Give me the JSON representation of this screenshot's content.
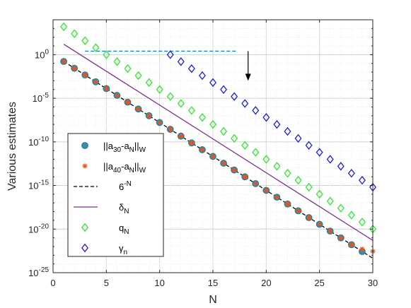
{
  "chart_data": {
    "type": "scatter",
    "xlabel": "N",
    "ylabel": "Various estimates",
    "xlim": [
      0,
      30
    ],
    "ylim_exponent": [
      -25,
      4
    ],
    "y_scale": "log",
    "grid": true,
    "legend_position": "bottom-left",
    "x_ticks": [
      "0",
      "5",
      "10",
      "15",
      "20",
      "25",
      "30"
    ],
    "y_ticks": [
      {
        "value": 0,
        "base": "10",
        "exp": "0"
      },
      {
        "value": -5,
        "base": "10",
        "exp": "-5"
      },
      {
        "value": -10,
        "base": "10",
        "exp": "-10"
      },
      {
        "value": -15,
        "base": "10",
        "exp": "-15"
      },
      {
        "value": -20,
        "base": "10",
        "exp": "-20"
      },
      {
        "value": -25,
        "base": "10",
        "exp": "-25"
      }
    ],
    "series": [
      {
        "label_main": "||a",
        "label_sub1": "30",
        "label_mid": "-a",
        "label_sub2": "N",
        "label_tail": "||",
        "label_sub3": "W",
        "marker": "circle",
        "color": "#2a7a8c",
        "fill": "#3a8fb0",
        "x": [
          1,
          2,
          3,
          4,
          5,
          6,
          7,
          8,
          9,
          10,
          11,
          12,
          13,
          14,
          15,
          16,
          17,
          18,
          19,
          20,
          21,
          22,
          23,
          24,
          25,
          26,
          27,
          28,
          29
        ],
        "log10_y": [
          -0.78,
          -1.56,
          -2.33,
          -3.11,
          -3.89,
          -4.67,
          -5.45,
          -6.23,
          -7.0,
          -7.78,
          -8.56,
          -9.34,
          -10.12,
          -10.9,
          -11.67,
          -12.45,
          -13.23,
          -14.01,
          -14.79,
          -15.56,
          -16.34,
          -17.12,
          -17.9,
          -18.68,
          -19.45,
          -20.23,
          -21.01,
          -21.79,
          -22.57
        ]
      },
      {
        "label_main": "||a",
        "label_sub1": "40",
        "label_mid": "-a",
        "label_sub2": "N",
        "label_tail": "||",
        "label_sub3": "W",
        "marker": "asterisk",
        "color": "#e8531f",
        "x": [
          1,
          2,
          3,
          4,
          5,
          6,
          7,
          8,
          9,
          10,
          11,
          12,
          13,
          14,
          15,
          16,
          17,
          18,
          19,
          20,
          21,
          22,
          23,
          24,
          25,
          26,
          27,
          28,
          29,
          30
        ],
        "log10_y": [
          -0.78,
          -1.56,
          -2.33,
          -3.11,
          -3.89,
          -4.67,
          -5.45,
          -6.23,
          -7.0,
          -7.78,
          -8.56,
          -9.34,
          -10.12,
          -10.9,
          -11.67,
          -12.45,
          -13.23,
          -14.01,
          -14.79,
          -15.56,
          -16.34,
          -17.12,
          -17.9,
          -18.68,
          -19.45,
          -20.23,
          -21.01,
          -21.79,
          -22.3,
          -22.55
        ]
      },
      {
        "label_main": "6",
        "label_sup": "-N",
        "marker": "dashed-line",
        "color": "#000000",
        "x": [
          1,
          30
        ],
        "log10_y": [
          -0.778,
          -23.345
        ]
      },
      {
        "label_main": "δ",
        "label_sub": "N",
        "marker": "line",
        "color": "#7e2f8e",
        "x": [
          1,
          30
        ],
        "log10_y": [
          1.2,
          -21.3
        ]
      },
      {
        "label_main": "q",
        "label_sub": "N",
        "marker": "diamond",
        "color": "#33e833",
        "x": [
          1,
          2,
          3,
          4,
          5,
          6,
          7,
          8,
          9,
          10,
          11,
          12,
          13,
          14,
          15,
          16,
          17,
          18,
          19,
          20,
          21,
          22,
          23,
          24,
          25,
          26,
          27,
          28,
          29,
          30
        ],
        "log10_y": [
          3.2,
          2.4,
          1.6,
          0.8,
          0.0,
          -0.8,
          -1.6,
          -2.4,
          -3.2,
          -4.0,
          -4.8,
          -5.6,
          -6.4,
          -7.2,
          -8.0,
          -8.8,
          -9.6,
          -10.4,
          -11.2,
          -12.0,
          -12.8,
          -13.6,
          -14.4,
          -15.2,
          -16.0,
          -16.8,
          -17.6,
          -18.4,
          -19.2,
          -20.0
        ]
      },
      {
        "label_main": "γ",
        "label_sub": "n",
        "marker": "diamond",
        "color": "#1f1fd4",
        "x": [
          11,
          12,
          13,
          14,
          15,
          16,
          17,
          18,
          19,
          20,
          21,
          22,
          23,
          24,
          25,
          26,
          27,
          28,
          29,
          30
        ],
        "log10_y": [
          0.0,
          -0.8,
          -1.6,
          -2.4,
          -3.2,
          -4.0,
          -4.8,
          -5.6,
          -6.4,
          -7.2,
          -8.0,
          -8.8,
          -9.6,
          -10.4,
          -11.2,
          -12.0,
          -12.8,
          -13.6,
          -14.4,
          -15.2
        ]
      }
    ],
    "annotation_line": {
      "x": [
        3,
        17.3
      ],
      "log10_y": [
        0.4,
        0.4
      ],
      "color": "#1a7fc4"
    },
    "annotation_arrow": {
      "x": 18.3,
      "log10_y_from": 0.4,
      "log10_y_to": -3.0,
      "color": "#000000"
    }
  }
}
